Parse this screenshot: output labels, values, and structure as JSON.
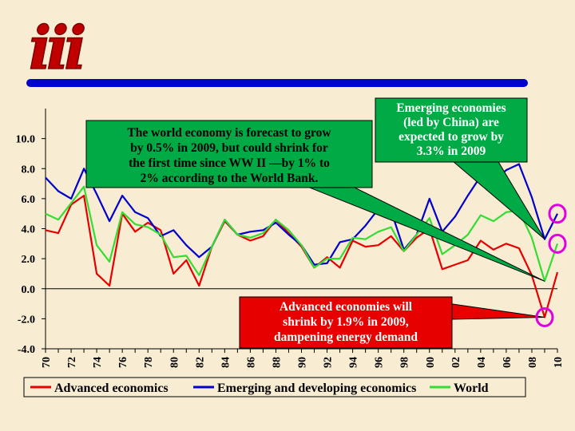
{
  "logo": {
    "text": "iii",
    "color": "#c00000"
  },
  "colors": {
    "background": "#f8ecd2",
    "advanced": "#e60000",
    "emerging": "#0000cc",
    "world": "#33dd33",
    "highlight_circle": "#e000e0",
    "callout_fill": "#00aa44",
    "top_rule": "#0000cc"
  },
  "chart_data": {
    "type": "line",
    "x": [
      1970,
      1971,
      1972,
      1973,
      1974,
      1975,
      1976,
      1977,
      1978,
      1979,
      1980,
      1981,
      1982,
      1983,
      1984,
      1985,
      1986,
      1987,
      1988,
      1989,
      1990,
      1991,
      1992,
      1993,
      1994,
      1995,
      1996,
      1997,
      1998,
      1999,
      2000,
      2001,
      2002,
      2003,
      2004,
      2005,
      2006,
      2007,
      2008,
      2009,
      2010
    ],
    "x_tick_labels": [
      "70",
      "72",
      "74",
      "76",
      "78",
      "80",
      "82",
      "84",
      "86",
      "88",
      "90",
      "92",
      "94",
      "96",
      "98",
      "00",
      "02",
      "04",
      "06",
      "08",
      "10"
    ],
    "ylim": [
      -4.0,
      12.0
    ],
    "y_ticks": [
      -4.0,
      -2.0,
      0.0,
      2.0,
      4.0,
      6.0,
      8.0,
      10.0
    ],
    "y_tick_labels": [
      "-4.0",
      "-2.0",
      "0.0",
      "2.0",
      "4.0",
      "6.0",
      "8.0",
      "10.0"
    ],
    "grid": false,
    "legend_position": "bottom",
    "series": [
      {
        "name": "Advanced economics",
        "color": "#e60000",
        "values": [
          3.9,
          3.7,
          5.6,
          6.2,
          1.0,
          0.2,
          5.0,
          3.8,
          4.4,
          3.9,
          1.0,
          1.9,
          0.2,
          2.8,
          4.5,
          3.6,
          3.2,
          3.5,
          4.6,
          3.7,
          2.8,
          1.4,
          2.1,
          1.4,
          3.2,
          2.8,
          2.9,
          3.5,
          2.5,
          3.4,
          4.0,
          1.3,
          1.6,
          1.9,
          3.2,
          2.6,
          3.0,
          2.7,
          0.9,
          -1.9,
          1.1
        ]
      },
      {
        "name": "Emerging and developing economics",
        "color": "#0000cc",
        "values": [
          7.4,
          6.5,
          6.0,
          8.0,
          6.3,
          4.5,
          6.2,
          5.1,
          4.7,
          3.5,
          3.9,
          2.9,
          2.1,
          2.8,
          4.6,
          3.6,
          3.8,
          3.9,
          4.4,
          3.6,
          2.9,
          1.6,
          1.7,
          3.1,
          3.3,
          4.2,
          5.3,
          5.2,
          2.6,
          3.6,
          6.0,
          3.8,
          4.8,
          6.2,
          7.5,
          7.1,
          7.9,
          8.3,
          6.1,
          3.3,
          5.0
        ]
      },
      {
        "name": "World",
        "color": "#33dd33",
        "values": [
          5.0,
          4.6,
          5.7,
          6.8,
          2.9,
          1.8,
          5.1,
          4.3,
          4.1,
          3.6,
          2.1,
          2.2,
          0.9,
          2.8,
          4.6,
          3.6,
          3.4,
          3.7,
          4.6,
          3.9,
          2.9,
          1.4,
          2.0,
          2.0,
          3.4,
          3.3,
          3.8,
          4.1,
          2.5,
          3.6,
          4.7,
          2.3,
          2.9,
          3.6,
          4.9,
          4.5,
          5.1,
          5.2,
          3.4,
          0.5,
          3.0
        ]
      }
    ],
    "annotations": [
      {
        "text": "The world economy is forecast to grow by 0.5% in 2009, but could shrink for the first time since WW II —by 1% to 2% according to the World Bank.",
        "lines": [
          "The world economy is forecast to grow",
          "by 0.5% in 2009, but could shrink for",
          "the first time since WW II —by 1% to",
          "2% according to the World Bank."
        ],
        "target_x": 2009,
        "target_y": 0.5
      },
      {
        "text": "Emerging economies (led by China) are expected to grow by 3.3% in 2009",
        "lines": [
          "Emerging economies",
          "(led by China) are",
          "expected to grow by",
          "3.3% in 2009"
        ],
        "target_x": 2009,
        "target_y": 3.3
      },
      {
        "text": "Advanced economies will shrink by 1.9% in 2009, dampening energy demand",
        "lines": [
          "Advanced economies will",
          "shrink by 1.9% in 2009,",
          "dampening energy demand"
        ],
        "target_x": 2009,
        "target_y": -1.9
      }
    ],
    "highlighted_points": [
      {
        "x": 2010,
        "y": 5.0
      },
      {
        "x": 2010,
        "y": 3.0
      },
      {
        "x": 2009,
        "y": -1.9
      }
    ]
  }
}
